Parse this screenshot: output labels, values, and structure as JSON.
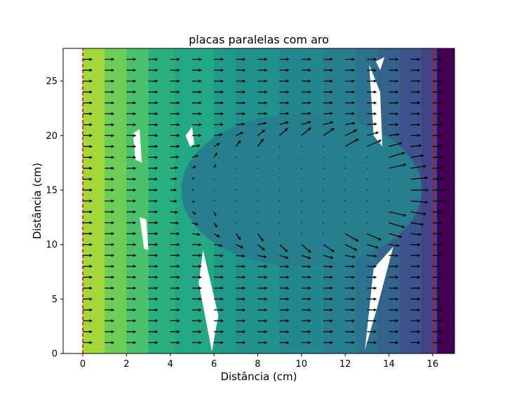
{
  "chart_data": {
    "type": "contour_quiver",
    "title": "placas paralelas com aro",
    "xlabel": "Distância (cm)",
    "ylabel": "Distância (cm)",
    "xlim": [
      -0.9,
      17.0
    ],
    "ylim": [
      0,
      28
    ],
    "x_ticks": [
      0,
      2,
      4,
      6,
      8,
      10,
      12,
      14,
      16
    ],
    "y_ticks": [
      0,
      5,
      10,
      15,
      20,
      25
    ],
    "grid": false,
    "colormap": "viridis",
    "plates": {
      "color": "#ff0000",
      "style": "dashed",
      "x_positions": [
        0,
        16
      ],
      "y_range": [
        0,
        28
      ]
    },
    "contour_bands": [
      {
        "x_from": -0.9,
        "x_to": 0.0,
        "color": "#ffffff"
      },
      {
        "x_from": 0.0,
        "x_to": 1.0,
        "color": "#a2d83a"
      },
      {
        "x_from": 1.0,
        "x_to": 2.0,
        "color": "#6dcd59"
      },
      {
        "x_from": 2.0,
        "x_to": 3.0,
        "color": "#4ac16d"
      },
      {
        "x_from": 3.0,
        "x_to": 4.2,
        "color": "#2ab07f"
      },
      {
        "x_from": 4.2,
        "x_to": 6.0,
        "color": "#22a884"
      },
      {
        "x_from": 6.0,
        "x_to": 7.0,
        "color": "#1f9a8a"
      },
      {
        "x_from": 7.0,
        "x_to": 9.0,
        "color": "#21918c"
      },
      {
        "x_from": 9.0,
        "x_to": 11.0,
        "color": "#23888e"
      },
      {
        "x_from": 11.0,
        "x_to": 12.5,
        "color": "#277f8e"
      },
      {
        "x_from": 12.5,
        "x_to": 13.5,
        "color": "#2c728e"
      },
      {
        "x_from": 13.5,
        "x_to": 14.5,
        "color": "#33638d"
      },
      {
        "x_from": 14.5,
        "x_to": 15.5,
        "color": "#3b528b"
      },
      {
        "x_from": 15.5,
        "x_to": 16.2,
        "color": "#414487"
      },
      {
        "x_from": 16.2,
        "x_to": 17.0,
        "color": "#440154"
      }
    ],
    "central_region": {
      "center": [
        10,
        15
      ],
      "radius_x": 5.5,
      "radius_y": 7,
      "color": "#277f8e"
    },
    "voids": [
      [
        [
          2.3,
          20.2
        ],
        [
          2.6,
          20.6
        ],
        [
          2.7,
          17.5
        ],
        [
          2.4,
          17.8
        ]
      ],
      [
        [
          2.6,
          12.5
        ],
        [
          2.9,
          12.3
        ],
        [
          3.0,
          9.5
        ],
        [
          2.8,
          9.6
        ]
      ],
      [
        [
          4.7,
          20.0
        ],
        [
          5.0,
          20.8
        ],
        [
          5.1,
          19.2
        ],
        [
          4.9,
          19.0
        ]
      ],
      [
        [
          5.5,
          9.5
        ],
        [
          6.2,
          3.5
        ],
        [
          5.9,
          0.2
        ],
        [
          5.3,
          6.5
        ]
      ],
      [
        [
          13.1,
          26.5
        ],
        [
          13.3,
          20.0
        ],
        [
          13.7,
          19.0
        ],
        [
          13.6,
          24.0
        ]
      ],
      [
        [
          13.4,
          26.8
        ],
        [
          13.8,
          27.2
        ],
        [
          13.6,
          26.0
        ]
      ],
      [
        [
          13.3,
          7.8
        ],
        [
          14.2,
          9.8
        ],
        [
          13.5,
          4.5
        ],
        [
          12.9,
          0.3
        ]
      ]
    ],
    "quiver": {
      "x_grid_start": 0,
      "x_grid_step": 1,
      "x_grid_count": 17,
      "y_grid_start": 1,
      "y_grid_step": 1,
      "y_grid_count": 27,
      "field_model": "parallel_plates_with_ring",
      "ring_center": [
        10,
        15
      ],
      "ring_radius": 4.6
    }
  }
}
